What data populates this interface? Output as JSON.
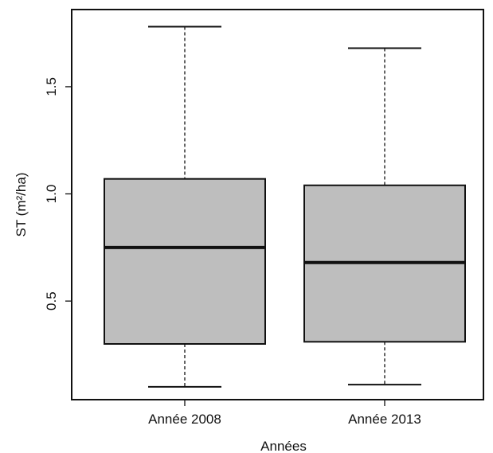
{
  "chart_data": {
    "type": "boxplot",
    "xlabel": "Années",
    "ylabel": "ST (m²/ha)",
    "categories": [
      "Année 2008",
      "Année 2013"
    ],
    "boxes": [
      {
        "label": "Année 2008",
        "min": 0.1,
        "q1": 0.3,
        "median": 0.75,
        "q3": 1.07,
        "max": 1.78
      },
      {
        "label": "Année 2013",
        "min": 0.11,
        "q1": 0.31,
        "median": 0.68,
        "q3": 1.04,
        "max": 1.68
      }
    ],
    "yticks": [
      0.5,
      1.0,
      1.5
    ],
    "ytick_labels": [
      "0.5",
      "1.0",
      "1.5"
    ],
    "ylim": [
      0.04,
      1.86
    ],
    "grid": false,
    "box_color": "#bebebe",
    "line_color": "#111111"
  }
}
